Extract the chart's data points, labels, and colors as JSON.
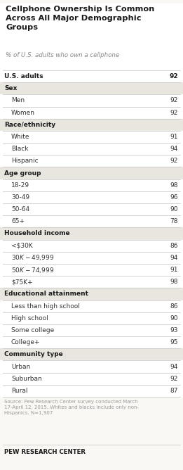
{
  "title": "Cellphone Ownership Is Common\nAcross All Major Demographic\nGroups",
  "subtitle": "% of U.S. adults who own a cellphone",
  "source": "Source: Pew Research Center survey conducted March\n17-April 12, 2015. Whites and blacks include only non-\nHispanics. N=1,907",
  "footer": "PEW RESEARCH CENTER",
  "rows": [
    {
      "label": "U.S. adults",
      "value": 92,
      "type": "header_data"
    },
    {
      "label": "Sex",
      "value": null,
      "type": "category"
    },
    {
      "label": "Men",
      "value": 92,
      "type": "data"
    },
    {
      "label": "Women",
      "value": 92,
      "type": "data"
    },
    {
      "label": "Race/ethnicity",
      "value": null,
      "type": "category"
    },
    {
      "label": "White",
      "value": 91,
      "type": "data"
    },
    {
      "label": "Black",
      "value": 94,
      "type": "data"
    },
    {
      "label": "Hispanic",
      "value": 92,
      "type": "data"
    },
    {
      "label": "Age group",
      "value": null,
      "type": "category"
    },
    {
      "label": "18-29",
      "value": 98,
      "type": "data"
    },
    {
      "label": "30-49",
      "value": 96,
      "type": "data"
    },
    {
      "label": "50-64",
      "value": 90,
      "type": "data"
    },
    {
      "label": "65+",
      "value": 78,
      "type": "data"
    },
    {
      "label": "Household income",
      "value": null,
      "type": "category"
    },
    {
      "label": "<$30K",
      "value": 86,
      "type": "data"
    },
    {
      "label": "$30K-$49,999",
      "value": 94,
      "type": "data"
    },
    {
      "label": "$50K-$74,999",
      "value": 91,
      "type": "data"
    },
    {
      "label": "$75K+",
      "value": 98,
      "type": "data"
    },
    {
      "label": "Educational attainment",
      "value": null,
      "type": "category"
    },
    {
      "label": "Less than high school",
      "value": 86,
      "type": "data"
    },
    {
      "label": "High school",
      "value": 90,
      "type": "data"
    },
    {
      "label": "Some college",
      "value": 93,
      "type": "data"
    },
    {
      "label": "College+",
      "value": 95,
      "type": "data"
    },
    {
      "label": "Community type",
      "value": null,
      "type": "category"
    },
    {
      "label": "Urban",
      "value": 94,
      "type": "data"
    },
    {
      "label": "Suburban",
      "value": 92,
      "type": "data"
    },
    {
      "label": "Rural",
      "value": 87,
      "type": "data"
    }
  ],
  "bg_color": "#f9f8f4",
  "category_bg_color": "#e8e6de",
  "data_bg_color": "#ffffff",
  "title_color": "#1a1a1a",
  "subtitle_color": "#888888",
  "category_text_color": "#1a1a1a",
  "data_text_color": "#333333",
  "source_color": "#999999",
  "footer_color": "#1a1a1a",
  "line_color": "#cccccc",
  "title_fontsize": 8.2,
  "subtitle_fontsize": 6.2,
  "row_fontsize": 6.5,
  "source_fontsize": 5.0,
  "footer_fontsize": 6.2
}
